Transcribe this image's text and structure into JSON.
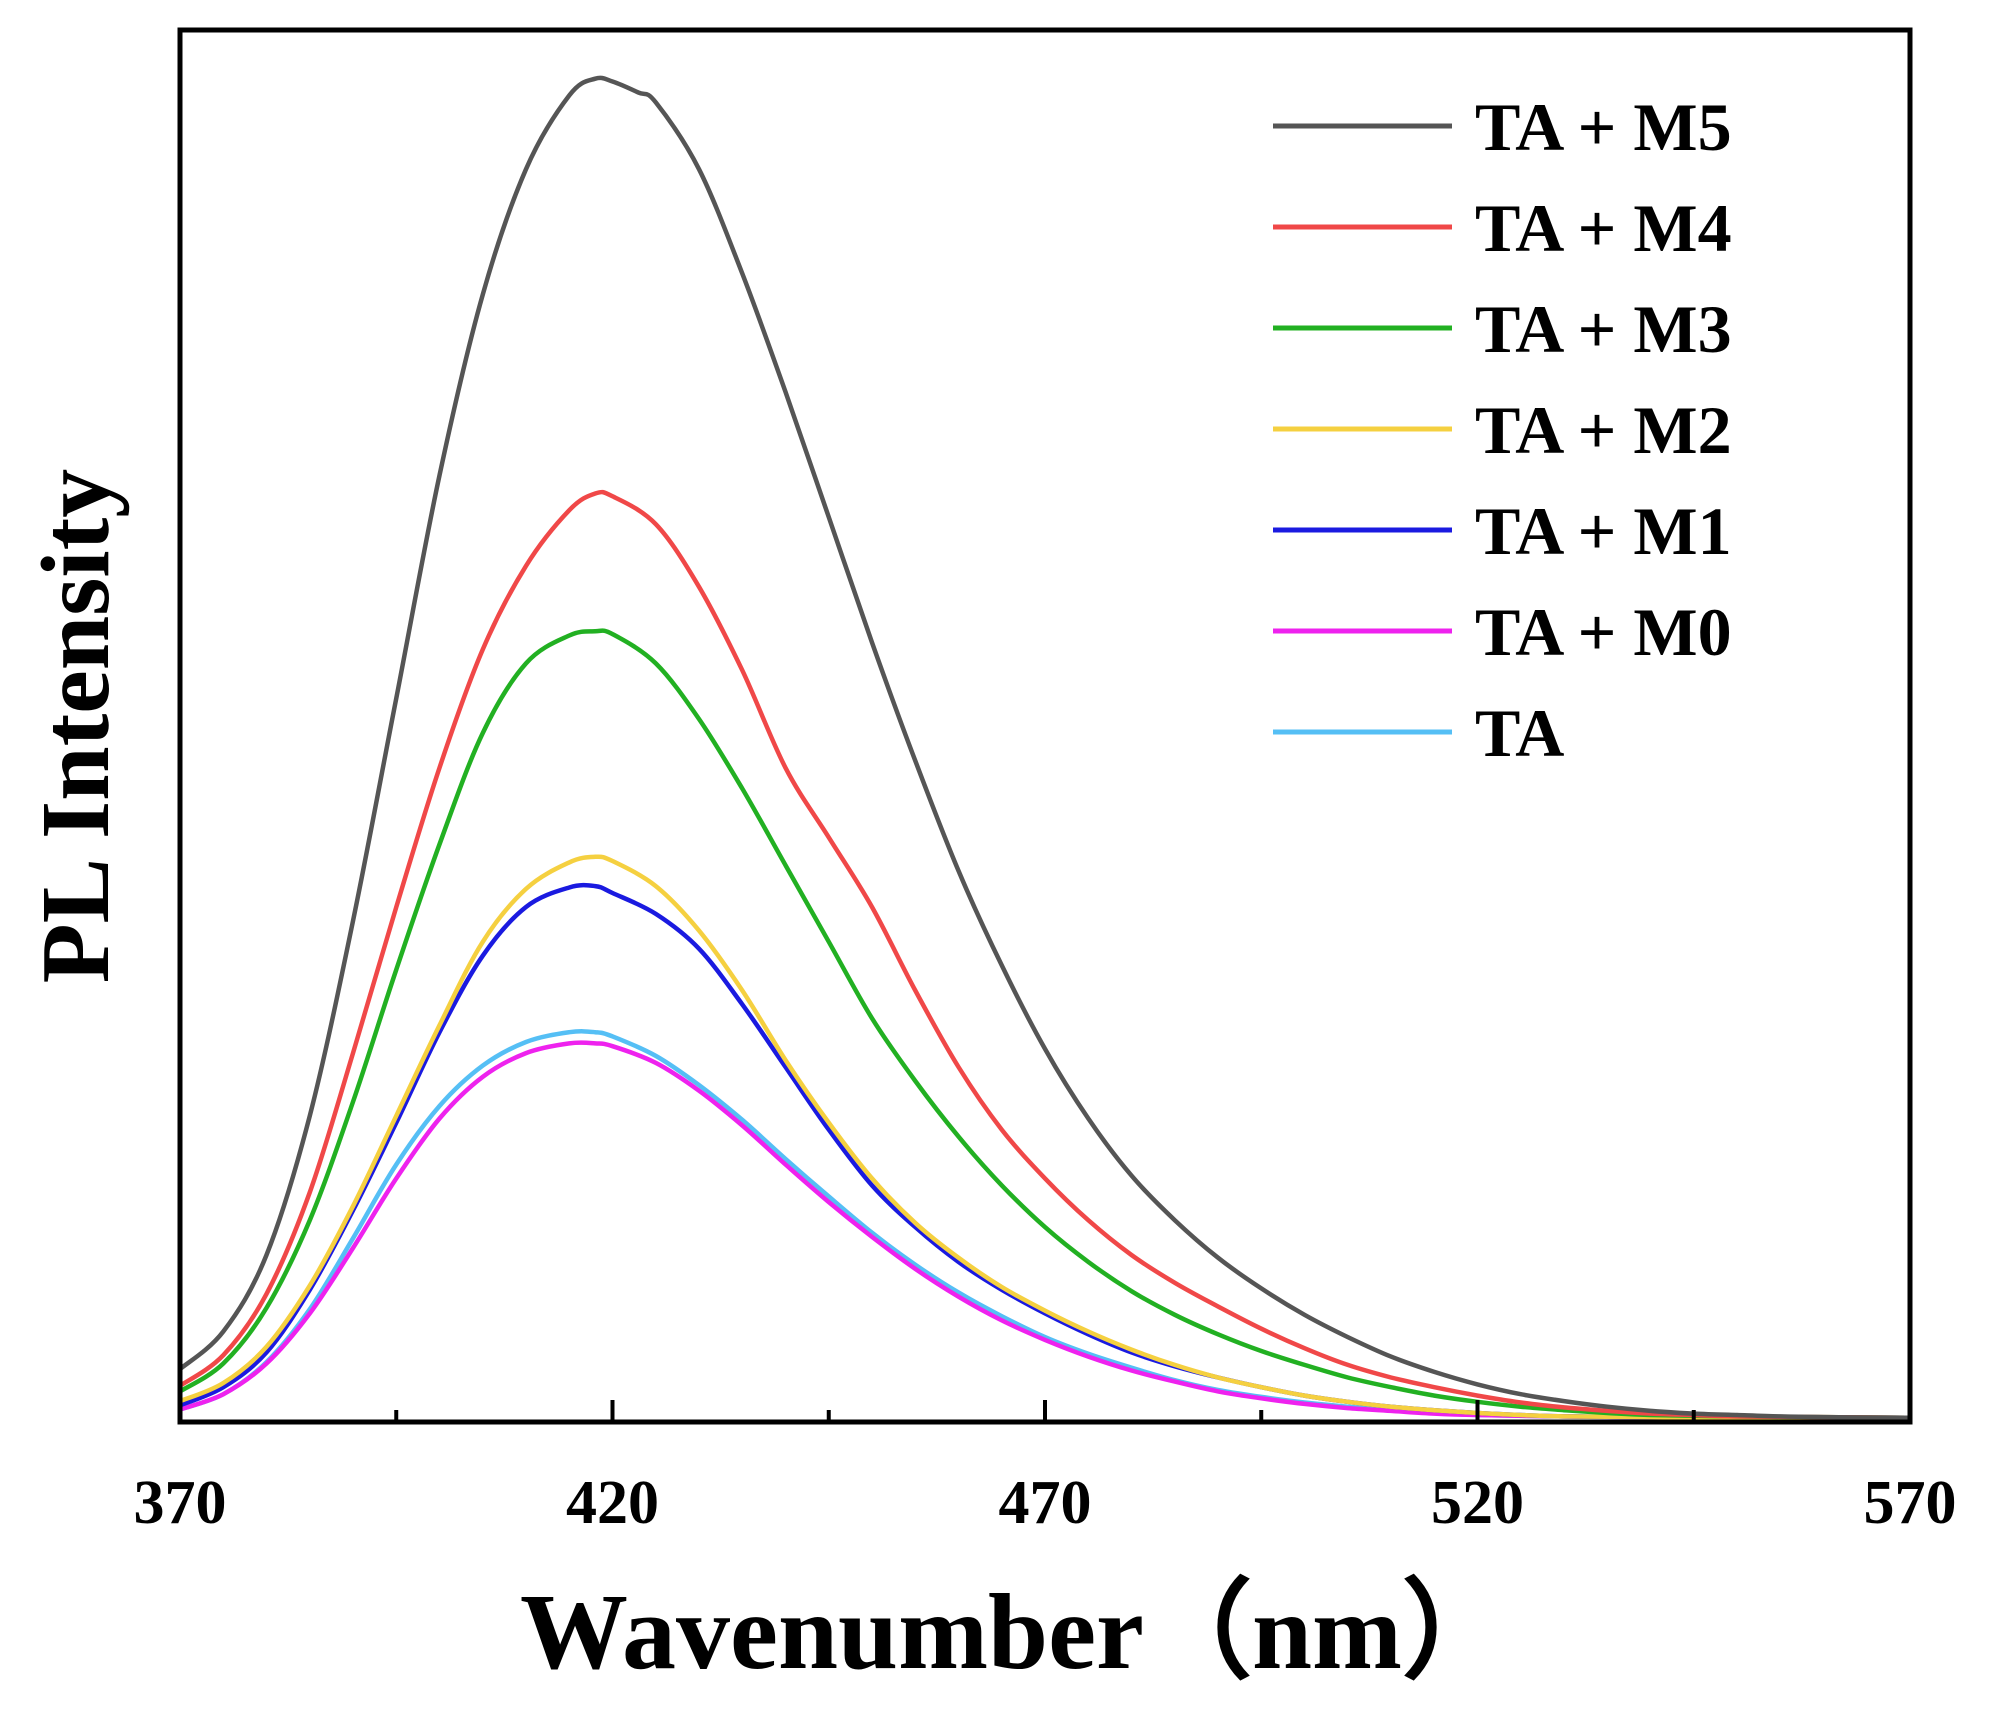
{
  "chart_data": {
    "type": "line",
    "xlabel": "Wavenumber（nm）",
    "ylabel": "PL Intensity",
    "xlim": [
      370,
      570
    ],
    "ylim": [
      0,
      100
    ],
    "x_ticks": [
      "370",
      "420",
      "470",
      "520",
      "570"
    ],
    "x_tick_values": [
      370,
      420,
      470,
      520,
      570
    ],
    "x_minor_ticks": [
      395,
      445,
      495,
      545
    ],
    "y_ticks_shown": false,
    "grid": false,
    "legend_position": "top-right",
    "series": [
      {
        "name": "TA + M5",
        "color": "#555555",
        "points": [
          [
            370,
            3.8
          ],
          [
            375,
            6.5
          ],
          [
            380,
            12
          ],
          [
            385,
            22
          ],
          [
            390,
            36
          ],
          [
            395,
            52
          ],
          [
            400,
            68
          ],
          [
            405,
            81
          ],
          [
            410,
            90
          ],
          [
            415,
            95.3
          ],
          [
            418,
            96.5
          ],
          [
            420,
            96.3
          ],
          [
            423,
            95.5
          ],
          [
            425,
            94.8
          ],
          [
            430,
            90
          ],
          [
            435,
            82.5
          ],
          [
            440,
            74
          ],
          [
            445,
            65
          ],
          [
            450,
            56
          ],
          [
            455,
            47.5
          ],
          [
            460,
            39.6
          ],
          [
            465,
            32.8
          ],
          [
            470,
            26.8
          ],
          [
            475,
            21.8
          ],
          [
            480,
            17.7
          ],
          [
            485,
            14.5
          ],
          [
            490,
            11.8
          ],
          [
            495,
            9.6
          ],
          [
            500,
            7.7
          ],
          [
            505,
            6.1
          ],
          [
            510,
            4.7
          ],
          [
            515,
            3.6
          ],
          [
            520,
            2.7
          ],
          [
            525,
            2
          ],
          [
            530,
            1.5
          ],
          [
            535,
            1.1
          ],
          [
            540,
            0.8
          ],
          [
            545,
            0.6
          ],
          [
            550,
            0.5
          ],
          [
            555,
            0.4
          ],
          [
            560,
            0.35
          ],
          [
            570,
            0.3
          ]
        ]
      },
      {
        "name": "TA + M4",
        "color": "#f04848",
        "points": [
          [
            370,
            2.6
          ],
          [
            375,
            4.8
          ],
          [
            380,
            9.2
          ],
          [
            385,
            16.5
          ],
          [
            390,
            26.5
          ],
          [
            395,
            37
          ],
          [
            400,
            47
          ],
          [
            405,
            55.5
          ],
          [
            410,
            61.5
          ],
          [
            415,
            65.5
          ],
          [
            418,
            66.7
          ],
          [
            420,
            66.5
          ],
          [
            425,
            64.5
          ],
          [
            430,
            60
          ],
          [
            435,
            54
          ],
          [
            440,
            47
          ],
          [
            445,
            42
          ],
          [
            450,
            37
          ],
          [
            455,
            31
          ],
          [
            460,
            25.5
          ],
          [
            465,
            21
          ],
          [
            470,
            17.5
          ],
          [
            475,
            14.5
          ],
          [
            480,
            12
          ],
          [
            485,
            10
          ],
          [
            490,
            8.3
          ],
          [
            495,
            6.7
          ],
          [
            500,
            5.3
          ],
          [
            505,
            4.1
          ],
          [
            510,
            3.2
          ],
          [
            515,
            2.5
          ],
          [
            520,
            1.9
          ],
          [
            525,
            1.4
          ],
          [
            530,
            1.05
          ],
          [
            535,
            0.8
          ],
          [
            540,
            0.6
          ],
          [
            545,
            0.5
          ],
          [
            550,
            0.4
          ],
          [
            560,
            0.35
          ],
          [
            570,
            0.3
          ]
        ]
      },
      {
        "name": "TA + M3",
        "color": "#22b022",
        "points": [
          [
            370,
            2.2
          ],
          [
            375,
            4.2
          ],
          [
            380,
            8.2
          ],
          [
            385,
            14.5
          ],
          [
            390,
            23
          ],
          [
            395,
            32.5
          ],
          [
            400,
            41.5
          ],
          [
            405,
            49.5
          ],
          [
            410,
            54.5
          ],
          [
            415,
            56.5
          ],
          [
            418,
            56.8
          ],
          [
            420,
            56.6
          ],
          [
            425,
            54.5
          ],
          [
            430,
            50.5
          ],
          [
            435,
            45.5
          ],
          [
            440,
            40
          ],
          [
            445,
            34.5
          ],
          [
            450,
            29
          ],
          [
            455,
            24.5
          ],
          [
            460,
            20.5
          ],
          [
            465,
            17
          ],
          [
            470,
            14
          ],
          [
            475,
            11.5
          ],
          [
            480,
            9.4
          ],
          [
            485,
            7.7
          ],
          [
            490,
            6.3
          ],
          [
            495,
            5.1
          ],
          [
            500,
            4.1
          ],
          [
            505,
            3.2
          ],
          [
            510,
            2.5
          ],
          [
            515,
            1.9
          ],
          [
            520,
            1.45
          ],
          [
            525,
            1.1
          ],
          [
            530,
            0.85
          ],
          [
            535,
            0.65
          ],
          [
            540,
            0.5
          ],
          [
            550,
            0.4
          ],
          [
            560,
            0.35
          ],
          [
            570,
            0.3
          ]
        ]
      },
      {
        "name": "TA + M2",
        "color": "#f5d040",
        "points": [
          [
            370,
            1.5
          ],
          [
            375,
            2.8
          ],
          [
            380,
            5.4
          ],
          [
            385,
            9.8
          ],
          [
            390,
            15.5
          ],
          [
            395,
            22
          ],
          [
            400,
            28.5
          ],
          [
            405,
            34.5
          ],
          [
            410,
            38.3
          ],
          [
            415,
            40.2
          ],
          [
            418,
            40.6
          ],
          [
            420,
            40.3
          ],
          [
            425,
            38.5
          ],
          [
            430,
            35.3
          ],
          [
            435,
            31
          ],
          [
            440,
            26
          ],
          [
            445,
            21.5
          ],
          [
            450,
            17.5
          ],
          [
            455,
            14.3
          ],
          [
            460,
            11.8
          ],
          [
            465,
            9.7
          ],
          [
            470,
            8
          ],
          [
            475,
            6.5
          ],
          [
            480,
            5.2
          ],
          [
            485,
            4.1
          ],
          [
            490,
            3.2
          ],
          [
            495,
            2.5
          ],
          [
            500,
            1.9
          ],
          [
            505,
            1.45
          ],
          [
            510,
            1.1
          ],
          [
            515,
            0.85
          ],
          [
            520,
            0.65
          ],
          [
            525,
            0.5
          ],
          [
            530,
            0.4
          ],
          [
            540,
            0.35
          ],
          [
            550,
            0.3
          ],
          [
            570,
            0.3
          ]
        ]
      },
      {
        "name": "TA + M1",
        "color": "#1a1ae0",
        "points": [
          [
            370,
            1.2
          ],
          [
            375,
            2.5
          ],
          [
            380,
            5
          ],
          [
            385,
            9.5
          ],
          [
            390,
            15.2
          ],
          [
            395,
            21.5
          ],
          [
            400,
            28
          ],
          [
            405,
            33.5
          ],
          [
            410,
            37
          ],
          [
            415,
            38.4
          ],
          [
            418,
            38.5
          ],
          [
            420,
            38
          ],
          [
            425,
            36.5
          ],
          [
            430,
            34
          ],
          [
            435,
            30
          ],
          [
            440,
            25.5
          ],
          [
            445,
            21
          ],
          [
            450,
            17
          ],
          [
            455,
            14
          ],
          [
            460,
            11.5
          ],
          [
            465,
            9.5
          ],
          [
            470,
            7.8
          ],
          [
            475,
            6.3
          ],
          [
            480,
            5
          ],
          [
            485,
            4
          ],
          [
            490,
            3.2
          ],
          [
            495,
            2.5
          ],
          [
            500,
            1.9
          ],
          [
            505,
            1.45
          ],
          [
            510,
            1.1
          ],
          [
            515,
            0.85
          ],
          [
            520,
            0.65
          ],
          [
            525,
            0.5
          ],
          [
            530,
            0.4
          ],
          [
            540,
            0.35
          ],
          [
            550,
            0.3
          ],
          [
            570,
            0.3
          ]
        ]
      },
      {
        "name": "TA + M0",
        "color": "#ee22ee",
        "points": [
          [
            370,
            0.9
          ],
          [
            375,
            2
          ],
          [
            380,
            4.2
          ],
          [
            385,
            7.8
          ],
          [
            390,
            12.5
          ],
          [
            395,
            17.5
          ],
          [
            400,
            21.8
          ],
          [
            405,
            24.8
          ],
          [
            410,
            26.5
          ],
          [
            415,
            27.2
          ],
          [
            418,
            27.2
          ],
          [
            420,
            27
          ],
          [
            425,
            25.8
          ],
          [
            430,
            23.8
          ],
          [
            435,
            21.3
          ],
          [
            440,
            18.5
          ],
          [
            445,
            15.8
          ],
          [
            450,
            13.3
          ],
          [
            455,
            11
          ],
          [
            460,
            9
          ],
          [
            465,
            7.3
          ],
          [
            470,
            5.9
          ],
          [
            475,
            4.7
          ],
          [
            480,
            3.7
          ],
          [
            485,
            2.9
          ],
          [
            490,
            2.2
          ],
          [
            495,
            1.7
          ],
          [
            500,
            1.3
          ],
          [
            505,
            1
          ],
          [
            510,
            0.8
          ],
          [
            515,
            0.6
          ],
          [
            520,
            0.5
          ],
          [
            530,
            0.4
          ],
          [
            540,
            0.35
          ],
          [
            570,
            0.3
          ]
        ]
      },
      {
        "name": "TA",
        "color": "#55bff5",
        "points": [
          [
            370,
            0.9
          ],
          [
            375,
            2
          ],
          [
            380,
            4.3
          ],
          [
            385,
            8.1
          ],
          [
            390,
            13.2
          ],
          [
            395,
            18.5
          ],
          [
            400,
            22.7
          ],
          [
            405,
            25.6
          ],
          [
            410,
            27.3
          ],
          [
            415,
            28
          ],
          [
            418,
            28
          ],
          [
            420,
            27.7
          ],
          [
            425,
            26.3
          ],
          [
            430,
            24.2
          ],
          [
            435,
            21.7
          ],
          [
            440,
            18.9
          ],
          [
            445,
            16.2
          ],
          [
            450,
            13.6
          ],
          [
            455,
            11.3
          ],
          [
            460,
            9.3
          ],
          [
            465,
            7.6
          ],
          [
            470,
            6.1
          ],
          [
            475,
            4.9
          ],
          [
            480,
            3.9
          ],
          [
            485,
            3
          ],
          [
            490,
            2.3
          ],
          [
            495,
            1.8
          ],
          [
            500,
            1.4
          ],
          [
            505,
            1.1
          ],
          [
            510,
            0.85
          ],
          [
            515,
            0.65
          ],
          [
            520,
            0.5
          ],
          [
            530,
            0.4
          ],
          [
            540,
            0.35
          ],
          [
            570,
            0.3
          ]
        ]
      }
    ]
  }
}
